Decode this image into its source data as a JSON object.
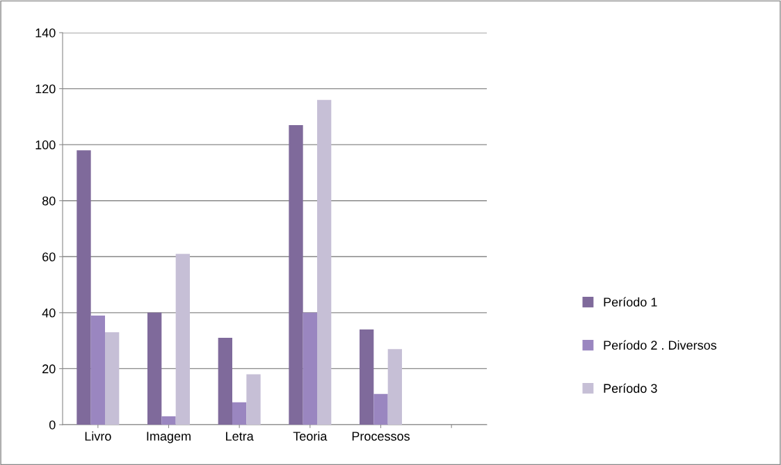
{
  "chart_data": {
    "type": "bar",
    "categories": [
      "Livro",
      "Imagem",
      "Letra",
      "Teoria",
      "Processos",
      null
    ],
    "series": [
      {
        "name": "Período 1",
        "color": "#7f6a9b",
        "values": [
          98,
          40,
          31,
          107,
          34,
          null
        ]
      },
      {
        "name": "Período 2 . Diversos",
        "color": "#9a86c0",
        "values": [
          39,
          3,
          8,
          40,
          11,
          null
        ]
      },
      {
        "name": "Período 3",
        "color": "#c6bfd6",
        "values": [
          33,
          61,
          18,
          116,
          27,
          null
        ]
      }
    ],
    "ylim": [
      0,
      140
    ],
    "yticks": [
      0,
      20,
      40,
      60,
      80,
      100,
      120,
      140
    ],
    "grid": "y",
    "legend": "right"
  }
}
